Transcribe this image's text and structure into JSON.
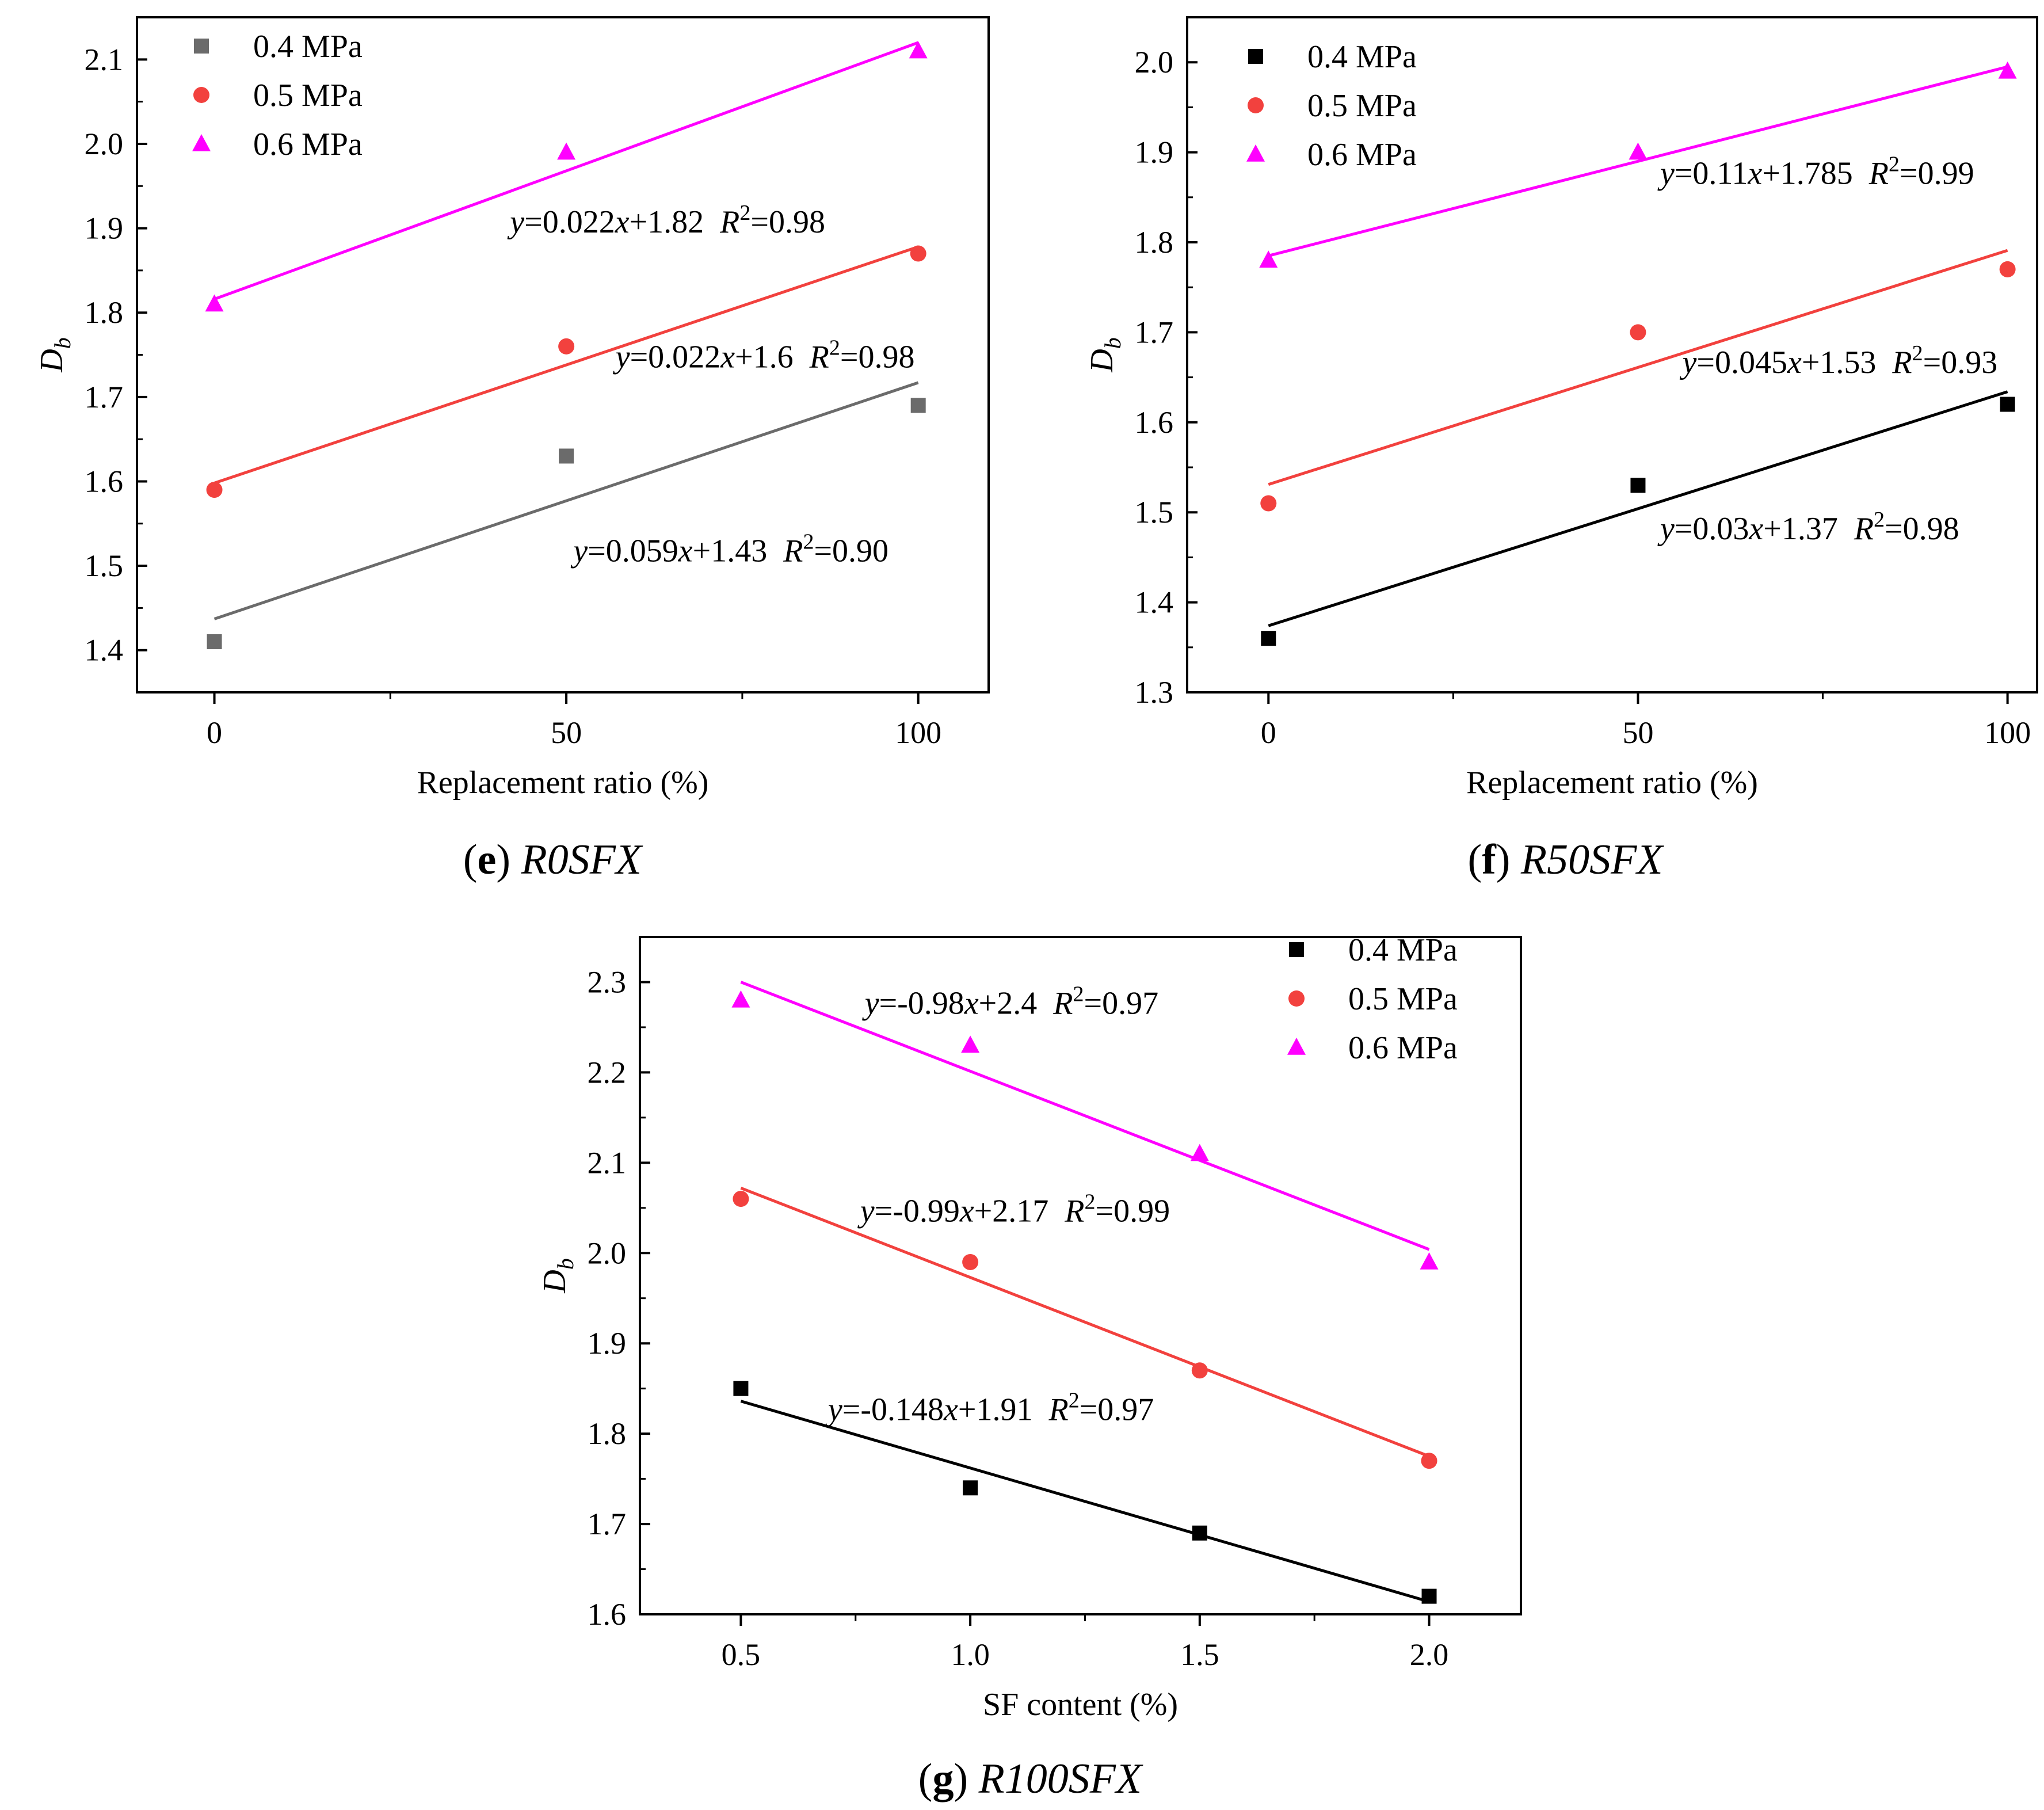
{
  "chart_data": [
    {
      "type": "scatter",
      "panel": "e",
      "caption": {
        "letter": "e",
        "label": "R0SFX",
        "label_plain": "R0",
        "label_italic": "SFX"
      },
      "xlabel": "Replacement ratio (%)",
      "ylabel": {
        "main": "D",
        "sub": "b"
      },
      "xlim": [
        -11,
        110
      ],
      "ylim": [
        1.35,
        2.15
      ],
      "xticks": [
        0,
        50,
        100
      ],
      "xtick_labels": [
        "0",
        "50",
        "100"
      ],
      "xminor": [
        25,
        75
      ],
      "yticks": [
        1.4,
        1.5,
        1.6,
        1.7,
        1.8,
        1.9,
        2.0,
        2.1
      ],
      "ytick_labels": [
        "1.4",
        "1.5",
        "1.6",
        "1.7",
        "1.8",
        "1.9",
        "2.0",
        "2.1"
      ],
      "legend": {
        "position": "top-left",
        "entries": [
          "0.4 MPa",
          "0.5 MPa",
          "0.6 MPa"
        ]
      },
      "series": [
        {
          "name": "0.4 MPa",
          "marker": "square",
          "color": "#6b6b6b",
          "x": [
            0,
            50,
            100
          ],
          "y": [
            1.41,
            1.63,
            1.69
          ],
          "fit": {
            "x": [
              0,
              100
            ],
            "y": [
              1.437,
              1.717
            ]
          },
          "equation": {
            "text": "y=0.059x+1.43  R2=0.90",
            "lhs": "y",
            "rhs_a": "=0.059",
            "var": "x",
            "rhs_b": "+1.43",
            "r": "R",
            "r_exp": "2",
            "r_val": "=0.90",
            "anchor": [
              51,
              1.505
            ]
          }
        },
        {
          "name": "0.5 MPa",
          "marker": "circle",
          "color": "#f2413e",
          "x": [
            0,
            50,
            100
          ],
          "y": [
            1.59,
            1.76,
            1.87
          ],
          "fit": {
            "x": [
              0,
              100
            ],
            "y": [
              1.598,
              1.878
            ]
          },
          "equation": {
            "text": "y=0.022x+1.6  R2=0.98",
            "lhs": "y",
            "rhs_a": "=0.022",
            "var": "x",
            "rhs_b": "+1.6",
            "r": "R",
            "r_exp": "2",
            "r_val": "=0.98",
            "anchor": [
              57,
              1.735
            ]
          }
        },
        {
          "name": "0.6 MPa",
          "marker": "triangle",
          "color": "#ff00ff",
          "x": [
            0,
            50,
            100
          ],
          "y": [
            1.81,
            1.99,
            2.11
          ],
          "fit": {
            "x": [
              0,
              100
            ],
            "y": [
              1.816,
              2.12
            ]
          },
          "equation": {
            "text": "y=0.022x+1.82  R2=0.98",
            "lhs": "y",
            "rhs_a": "=0.022",
            "var": "x",
            "rhs_b": "+1.82",
            "r": "R",
            "r_exp": "2",
            "r_val": "=0.98",
            "anchor": [
              42,
              1.895
            ]
          }
        }
      ]
    },
    {
      "type": "scatter",
      "panel": "f",
      "caption": {
        "letter": "f",
        "label": "R50SFX",
        "label_plain": "R50",
        "label_italic": "SFX"
      },
      "xlabel": "Replacement ratio (%)",
      "ylabel": {
        "main": "D",
        "sub": "b"
      },
      "xlim": [
        -11,
        104
      ],
      "ylim": [
        1.3,
        2.05
      ],
      "xticks": [
        0,
        50,
        100
      ],
      "xtick_labels": [
        "0",
        "50",
        "100"
      ],
      "xminor": [
        25,
        75
      ],
      "yticks": [
        1.3,
        1.4,
        1.5,
        1.6,
        1.7,
        1.8,
        1.9,
        2.0
      ],
      "ytick_labels": [
        "1.3",
        "1.4",
        "1.5",
        "1.6",
        "1.7",
        "1.8",
        "1.9",
        "2.0"
      ],
      "legend": {
        "position": "top-left",
        "entries": [
          "0.4 MPa",
          "0.5 MPa",
          "0.6 MPa"
        ]
      },
      "series": [
        {
          "name": "0.4 MPa",
          "marker": "square",
          "color": "#000000",
          "x": [
            0,
            50,
            100
          ],
          "y": [
            1.36,
            1.53,
            1.62
          ],
          "fit": {
            "x": [
              0,
              100
            ],
            "y": [
              1.374,
              1.634
            ]
          },
          "equation": {
            "text": "y=0.03x+1.37  R2=0.98",
            "lhs": "y",
            "rhs_a": "=0.03",
            "var": "x",
            "rhs_b": "+1.37",
            "r": "R",
            "r_exp": "2",
            "r_val": "=0.98",
            "anchor": [
              53,
              1.47
            ]
          }
        },
        {
          "name": "0.5 MPa",
          "marker": "circle",
          "color": "#f2413e",
          "x": [
            0,
            50,
            100
          ],
          "y": [
            1.51,
            1.7,
            1.77
          ],
          "fit": {
            "x": [
              0,
              100
            ],
            "y": [
              1.531,
              1.791
            ]
          },
          "equation": {
            "text": "y=0.045x+1.53  R2=0.93",
            "lhs": "y",
            "rhs_a": "=0.045",
            "var": "x",
            "rhs_b": "+1.53",
            "r": "R",
            "r_exp": "2",
            "r_val": "=0.93",
            "anchor": [
              56,
              1.655
            ]
          }
        },
        {
          "name": "0.6 MPa",
          "marker": "triangle",
          "color": "#ff00ff",
          "x": [
            0,
            50,
            100
          ],
          "y": [
            1.78,
            1.9,
            1.99
          ],
          "fit": {
            "x": [
              0,
              100
            ],
            "y": [
              1.785,
              1.995
            ]
          },
          "equation": {
            "text": "y=0.11x+1.785  R2=0.99",
            "lhs": "y",
            "rhs_a": "=0.11",
            "var": "x",
            "rhs_b": "+1.785",
            "r": "R",
            "r_exp": "2",
            "r_val": "=0.99",
            "anchor": [
              53,
              1.865
            ]
          }
        }
      ]
    },
    {
      "type": "scatter",
      "panel": "g",
      "caption": {
        "letter": "g",
        "label": "R100SFX",
        "label_plain": "R100",
        "label_italic": "SFX"
      },
      "xlabel": "SF content (%)",
      "ylabel": {
        "main": "D",
        "sub": "b"
      },
      "xlim": [
        0.28,
        2.2
      ],
      "ylim": [
        1.6,
        2.35
      ],
      "xticks": [
        0.5,
        1.0,
        1.5,
        2.0
      ],
      "xtick_labels": [
        "0.5",
        "1.0",
        "1.5",
        "2.0"
      ],
      "xminor": [
        0.75,
        1.25,
        1.75
      ],
      "yticks": [
        1.6,
        1.7,
        1.8,
        1.9,
        2.0,
        2.1,
        2.2,
        2.3
      ],
      "ytick_labels": [
        "1.6",
        "1.7",
        "1.8",
        "1.9",
        "2.0",
        "2.1",
        "2.2",
        "2.3"
      ],
      "legend": {
        "position": "top-right",
        "entries": [
          "0.4 MPa",
          "0.5 MPa",
          "0.6 MPa"
        ]
      },
      "series": [
        {
          "name": "0.4 MPa",
          "marker": "square",
          "color": "#000000",
          "x": [
            0.5,
            1.0,
            1.5,
            2.0
          ],
          "y": [
            1.85,
            1.74,
            1.69,
            1.62
          ],
          "fit": {
            "x": [
              0.5,
              2.0
            ],
            "y": [
              1.836,
              1.614
            ]
          },
          "equation": {
            "text": "y=-0.148x+1.91 R2=0.97",
            "lhs": "y",
            "rhs_a": "=-0.148",
            "var": "x",
            "rhs_b": "+1.91",
            "r": "R",
            "r_exp": "2",
            "r_val": "=0.97",
            "anchor": [
              0.69,
              1.815
            ]
          }
        },
        {
          "name": "0.5 MPa",
          "marker": "circle",
          "color": "#f2413e",
          "x": [
            0.5,
            1.0,
            1.5,
            2.0
          ],
          "y": [
            2.06,
            1.99,
            1.87,
            1.77
          ],
          "fit": {
            "x": [
              0.5,
              2.0
            ],
            "y": [
              2.072,
              1.775
            ]
          },
          "equation": {
            "text": "y=-0.99x+2.17 R2=0.99",
            "lhs": "y",
            "rhs_a": "=-0.99",
            "var": "x",
            "rhs_b": "+2.17",
            "r": "R",
            "r_exp": "2",
            "r_val": "=0.99",
            "anchor": [
              0.76,
              2.035
            ]
          }
        },
        {
          "name": "0.6 MPa",
          "marker": "triangle",
          "color": "#ff00ff",
          "x": [
            0.5,
            1.0,
            1.5,
            2.0
          ],
          "y": [
            2.28,
            2.23,
            2.11,
            1.99
          ],
          "fit": {
            "x": [
              0.5,
              2.0
            ],
            "y": [
              2.3,
              2.004
            ]
          },
          "equation": {
            "text": "y=-0.98x+2.4  R2=0.97",
            "lhs": "y",
            "rhs_a": "=-0.98",
            "var": "x",
            "rhs_b": "+2.4",
            "r": "R",
            "r_exp": "2",
            "r_val": "=0.97",
            "anchor": [
              0.77,
              2.265
            ]
          }
        }
      ]
    }
  ]
}
